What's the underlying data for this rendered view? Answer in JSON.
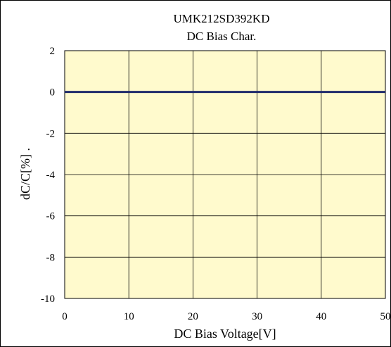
{
  "chart_data": {
    "type": "line",
    "title": "UMK212SD392KD",
    "subtitle": "DC Bias Char.",
    "xlabel": "DC Bias Voltage[V]",
    "ylabel": "dC/C[%] .",
    "xlim": [
      0,
      50
    ],
    "ylim": [
      -10,
      2
    ],
    "xticks": [
      0,
      10,
      20,
      30,
      40,
      50
    ],
    "yticks": [
      2,
      0,
      -2,
      -4,
      -6,
      -8,
      -10
    ],
    "xtick_labels": [
      "0",
      "10",
      "20",
      "30",
      "40",
      "50"
    ],
    "ytick_labels": [
      "2",
      "0",
      "-2",
      "-4",
      "-6",
      "-8",
      "-10"
    ],
    "grid": true,
    "legend": "none",
    "plot_background": "#fffacd",
    "series": [
      {
        "color": "#1f2a6b",
        "x": [
          0,
          10,
          20,
          30,
          40,
          50
        ],
        "y": [
          0,
          0,
          0,
          0,
          0,
          0
        ]
      }
    ]
  }
}
